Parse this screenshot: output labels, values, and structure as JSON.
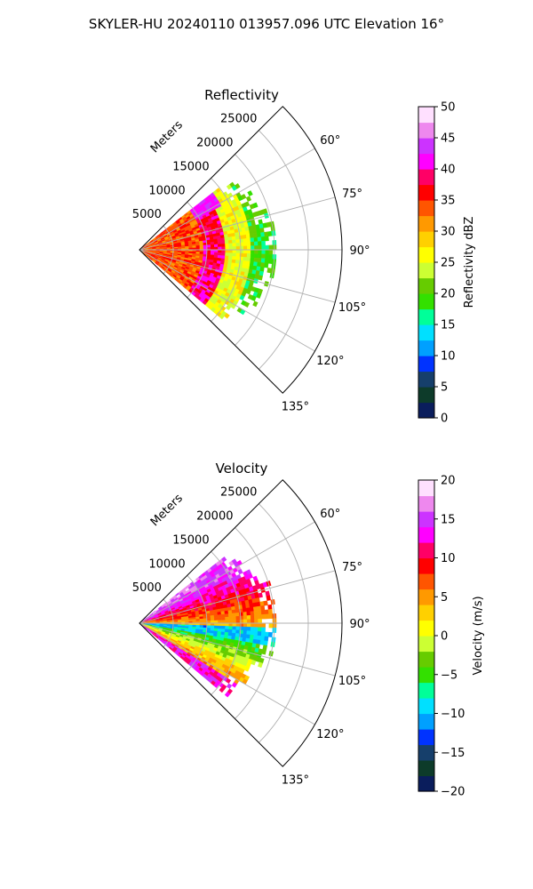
{
  "suptitle": "SKYLER-HU  20240110  013957.096 UTC Elevation 16°",
  "chart_data": [
    {
      "type": "polar-sector",
      "title": "Reflectivity",
      "radial_label": "Meters",
      "radial_ticks": [
        5000,
        10000,
        15000,
        20000,
        25000
      ],
      "radial_tick_labels": [
        "5000",
        "10000",
        "15000",
        "20000",
        "25000"
      ],
      "rmax": 30000,
      "azimuth_range": [
        45,
        135
      ],
      "azimuth_ticks": [
        60,
        75,
        90,
        105,
        120,
        135
      ],
      "azimuth_tick_labels": [
        "60°",
        "75°",
        "90°",
        "105°",
        "120°",
        "135°"
      ],
      "data_extent": {
        "azimuth_range": [
          52,
          130
        ],
        "max_range_m": 20000
      },
      "colorbar": {
        "label": "Reflectivity dBZ",
        "range": [
          0,
          50
        ],
        "ticks": [
          0,
          5,
          10,
          15,
          20,
          25,
          30,
          35,
          40,
          45,
          50
        ],
        "tick_labels": [
          "0",
          "5",
          "10",
          "15",
          "20",
          "25",
          "30",
          "35",
          "40",
          "45",
          "50"
        ]
      }
    },
    {
      "type": "polar-sector",
      "title": "Velocity",
      "radial_label": "Meters",
      "radial_ticks": [
        5000,
        10000,
        15000,
        20000,
        25000
      ],
      "radial_tick_labels": [
        "5000",
        "10000",
        "15000",
        "20000",
        "25000"
      ],
      "rmax": 30000,
      "azimuth_range": [
        45,
        135
      ],
      "azimuth_ticks": [
        60,
        75,
        90,
        105,
        120,
        135
      ],
      "azimuth_tick_labels": [
        "60°",
        "75°",
        "90°",
        "105°",
        "120°",
        "135°"
      ],
      "data_extent": {
        "azimuth_range": [
          52,
          130
        ],
        "max_range_m": 20000
      },
      "colorbar": {
        "label": "Velocity (m/s)",
        "range": [
          -20,
          20
        ],
        "ticks": [
          -20,
          -15,
          -10,
          -5,
          0,
          5,
          10,
          15,
          20
        ],
        "tick_labels": [
          "−20",
          "−15",
          "−10",
          "−5",
          "0",
          "5",
          "10",
          "15",
          "20"
        ]
      }
    }
  ],
  "colormap_stops": [
    "#0a1d5c",
    "#0d3b2a",
    "#163f6b",
    "#0033ff",
    "#00a0ff",
    "#00e0ff",
    "#00ff99",
    "#33e000",
    "#66cc00",
    "#ccff33",
    "#ffff00",
    "#ffd000",
    "#ff9900",
    "#ff5500",
    "#ff0000",
    "#ff0066",
    "#ff00ff",
    "#cc33ff",
    "#ee88ee",
    "#ffe0ff"
  ]
}
